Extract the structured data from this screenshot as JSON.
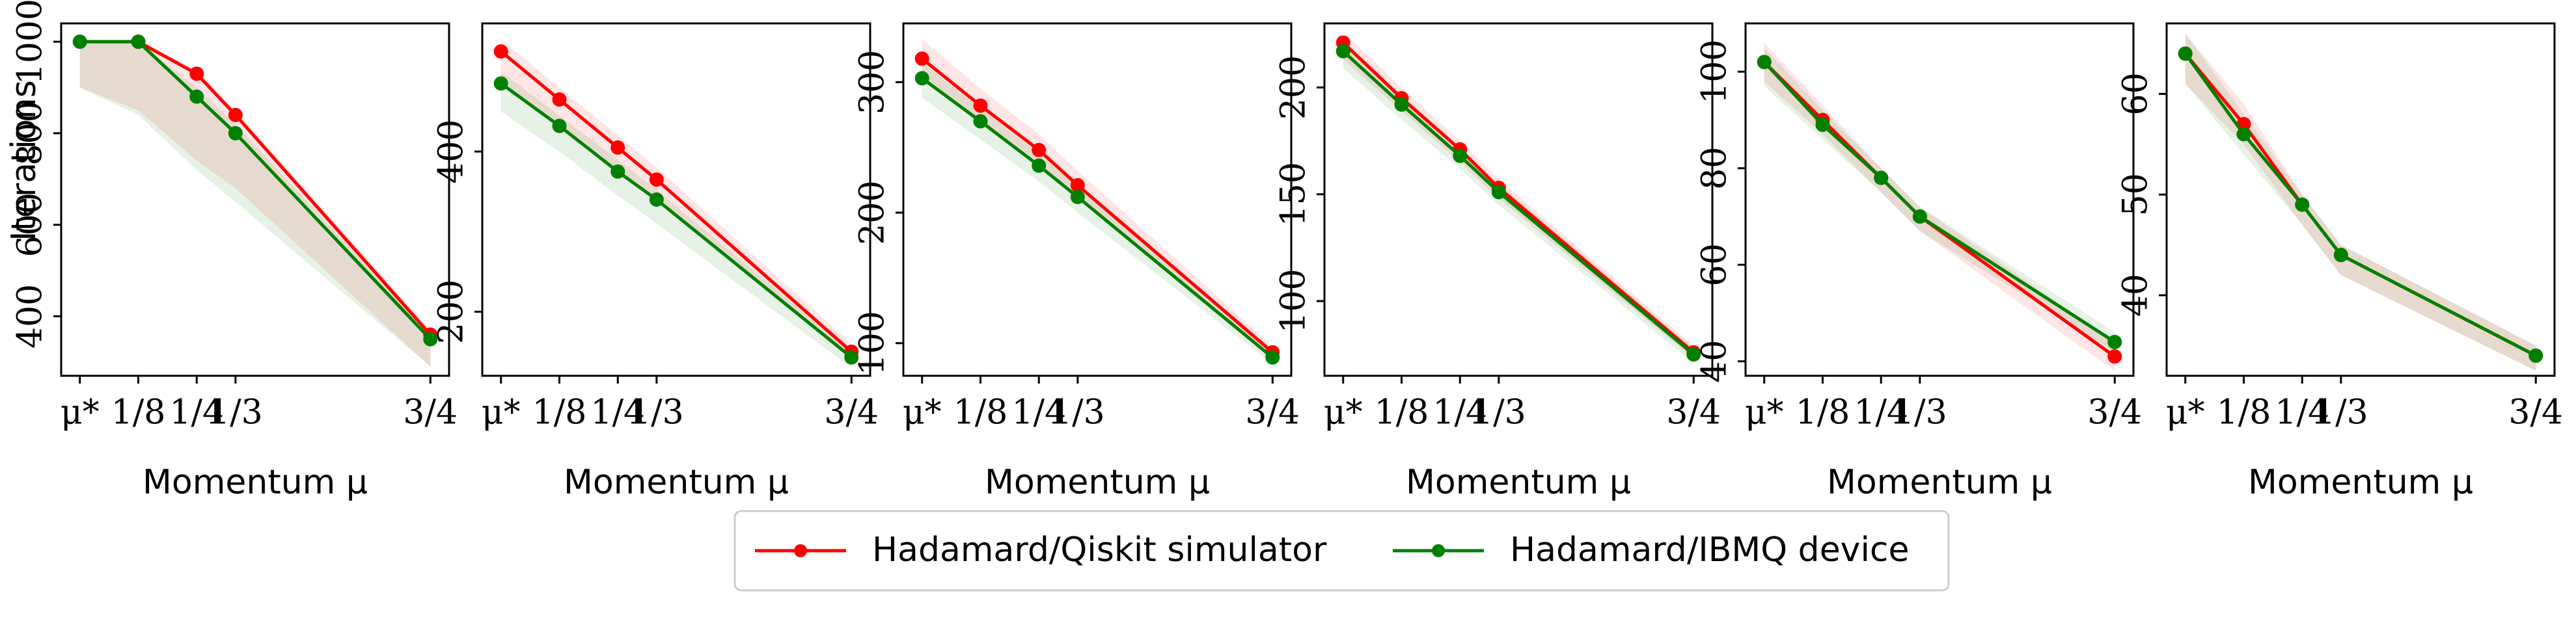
{
  "chart_data": [
    {
      "type": "line",
      "ylabel": "Iterations",
      "xlabel": "Momentum μ",
      "x": [
        0,
        0.125,
        0.25,
        0.333,
        0.75
      ],
      "xlim": [
        -0.04,
        0.79
      ],
      "xticks": [
        {
          "value": 0,
          "label": "μ*"
        },
        {
          "value": 0.125,
          "label": "1/8"
        },
        {
          "value": 0.25,
          "label": "1/4"
        },
        {
          "value": 0.333,
          "label": "1/3"
        },
        {
          "value": 0.75,
          "label": "3/4"
        }
      ],
      "ylim": [
        270,
        1040
      ],
      "yticks": [
        400,
        600,
        800,
        1000
      ],
      "series": [
        {
          "name": "Hadamard/Qiskit simulator",
          "color": "#ff0000",
          "values": [
            1000,
            1000,
            930,
            840,
            360
          ],
          "lower": [
            900,
            850,
            740,
            680,
            290
          ],
          "upper": [
            1000,
            1000,
            940,
            850,
            370
          ]
        },
        {
          "name": "Hadamard/IBMQ device",
          "color": "#008000",
          "values": [
            1000,
            1000,
            880,
            800,
            350
          ],
          "lower": [
            900,
            840,
            720,
            650,
            290
          ],
          "upper": [
            1000,
            1000,
            900,
            820,
            360
          ]
        }
      ]
    },
    {
      "type": "line",
      "xlabel": "Momentum μ",
      "x": [
        0,
        0.125,
        0.25,
        0.333,
        0.75
      ],
      "xlim": [
        -0.04,
        0.79
      ],
      "xticks": [
        {
          "value": 0,
          "label": "μ*"
        },
        {
          "value": 0.125,
          "label": "1/8"
        },
        {
          "value": 0.25,
          "label": "1/4"
        },
        {
          "value": 0.333,
          "label": "1/3"
        },
        {
          "value": 0.75,
          "label": "3/4"
        }
      ],
      "ylim": [
        120,
        560
      ],
      "yticks": [
        200,
        400
      ],
      "series": [
        {
          "name": "Hadamard/Qiskit simulator",
          "color": "#ff0000",
          "values": [
            525,
            465,
            405,
            365,
            150
          ],
          "lower": [
            485,
            432,
            375,
            340,
            143
          ],
          "upper": [
            540,
            480,
            420,
            380,
            160
          ]
        },
        {
          "name": "Hadamard/IBMQ device",
          "color": "#008000",
          "values": [
            485,
            432,
            375,
            340,
            143
          ],
          "lower": [
            450,
            400,
            345,
            310,
            130
          ],
          "upper": [
            500,
            445,
            390,
            352,
            150
          ]
        }
      ]
    },
    {
      "type": "line",
      "xlabel": "Momentum μ",
      "x": [
        0,
        0.125,
        0.25,
        0.333,
        0.75
      ],
      "xlim": [
        -0.04,
        0.79
      ],
      "xticks": [
        {
          "value": 0,
          "label": "μ*"
        },
        {
          "value": 0.125,
          "label": "1/8"
        },
        {
          "value": 0.25,
          "label": "1/4"
        },
        {
          "value": 0.333,
          "label": "1/3"
        },
        {
          "value": 0.75,
          "label": "3/4"
        }
      ],
      "ylim": [
        75,
        345
      ],
      "yticks": [
        100,
        200,
        300
      ],
      "series": [
        {
          "name": "Hadamard/Qiskit simulator",
          "color": "#ff0000",
          "values": [
            318,
            282,
            248,
            221,
            93
          ],
          "lower": [
            303,
            270,
            236,
            212,
            89
          ],
          "upper": [
            333,
            295,
            260,
            232,
            98
          ]
        },
        {
          "name": "Hadamard/IBMQ device",
          "color": "#008000",
          "values": [
            303,
            270,
            236,
            212,
            89
          ],
          "lower": [
            288,
            256,
            224,
            200,
            84
          ],
          "upper": [
            315,
            280,
            245,
            220,
            93
          ]
        }
      ]
    },
    {
      "type": "line",
      "xlabel": "Momentum μ",
      "x": [
        0,
        0.125,
        0.25,
        0.333,
        0.75
      ],
      "xlim": [
        -0.04,
        0.79
      ],
      "xticks": [
        {
          "value": 0,
          "label": "μ*"
        },
        {
          "value": 0.125,
          "label": "1/8"
        },
        {
          "value": 0.25,
          "label": "1/4"
        },
        {
          "value": 0.333,
          "label": "1/3"
        },
        {
          "value": 0.75,
          "label": "3/4"
        }
      ],
      "ylim": [
        65,
        230
      ],
      "yticks": [
        100,
        150,
        200
      ],
      "series": [
        {
          "name": "Hadamard/Qiskit simulator",
          "color": "#ff0000",
          "values": [
            221,
            195,
            171,
            153,
            76
          ],
          "lower": [
            213,
            189,
            165,
            148,
            73
          ],
          "upper": [
            226,
            200,
            175,
            157,
            79
          ]
        },
        {
          "name": "Hadamard/IBMQ device",
          "color": "#008000",
          "values": [
            217,
            192,
            168,
            151,
            75
          ],
          "lower": [
            209,
            185,
            162,
            145,
            71
          ],
          "upper": [
            222,
            197,
            172,
            155,
            78
          ]
        }
      ]
    },
    {
      "type": "line",
      "xlabel": "Momentum μ",
      "x": [
        0,
        0.125,
        0.25,
        0.333,
        0.75
      ],
      "xlim": [
        -0.04,
        0.79
      ],
      "xticks": [
        {
          "value": 0,
          "label": "μ*"
        },
        {
          "value": 0.125,
          "label": "1/8"
        },
        {
          "value": 0.25,
          "label": "1/4"
        },
        {
          "value": 0.333,
          "label": "1/3"
        },
        {
          "value": 0.75,
          "label": "3/4"
        }
      ],
      "ylim": [
        37,
        110
      ],
      "yticks": [
        40,
        60,
        80,
        100
      ],
      "series": [
        {
          "name": "Hadamard/Qiskit simulator",
          "color": "#ff0000",
          "values": [
            102,
            90,
            78,
            70,
            41
          ],
          "lower": [
            98,
            87,
            75,
            67,
            38
          ],
          "upper": [
            106,
            93,
            80,
            72,
            44
          ]
        },
        {
          "name": "Hadamard/IBMQ device",
          "color": "#008000",
          "values": [
            102,
            89,
            78,
            70,
            44
          ],
          "lower": [
            97,
            86,
            75,
            67,
            42
          ],
          "upper": [
            105,
            92,
            80,
            72,
            46
          ]
        }
      ]
    },
    {
      "type": "line",
      "xlabel": "Momentum μ",
      "x": [
        0,
        0.125,
        0.25,
        0.333,
        0.75
      ],
      "xlim": [
        -0.04,
        0.79
      ],
      "xticks": [
        {
          "value": 0,
          "label": "μ*"
        },
        {
          "value": 0.125,
          "label": "1/8"
        },
        {
          "value": 0.25,
          "label": "1/4"
        },
        {
          "value": 0.333,
          "label": "1/3"
        },
        {
          "value": 0.75,
          "label": "3/4"
        }
      ],
      "ylim": [
        32,
        67
      ],
      "yticks": [
        40,
        50,
        60
      ],
      "series": [
        {
          "name": "Hadamard/Qiskit simulator",
          "color": "#ff0000",
          "values": [
            64,
            57,
            49,
            44,
            34
          ],
          "lower": [
            61,
            55,
            47,
            42,
            32.5
          ],
          "upper": [
            66,
            59,
            50,
            45,
            35
          ]
        },
        {
          "name": "Hadamard/IBMQ device",
          "color": "#008000",
          "values": [
            64,
            56,
            49,
            44,
            34
          ],
          "lower": [
            61,
            54,
            47,
            42,
            32.5
          ],
          "upper": [
            66,
            58,
            50,
            45,
            35
          ]
        }
      ]
    }
  ]
}
